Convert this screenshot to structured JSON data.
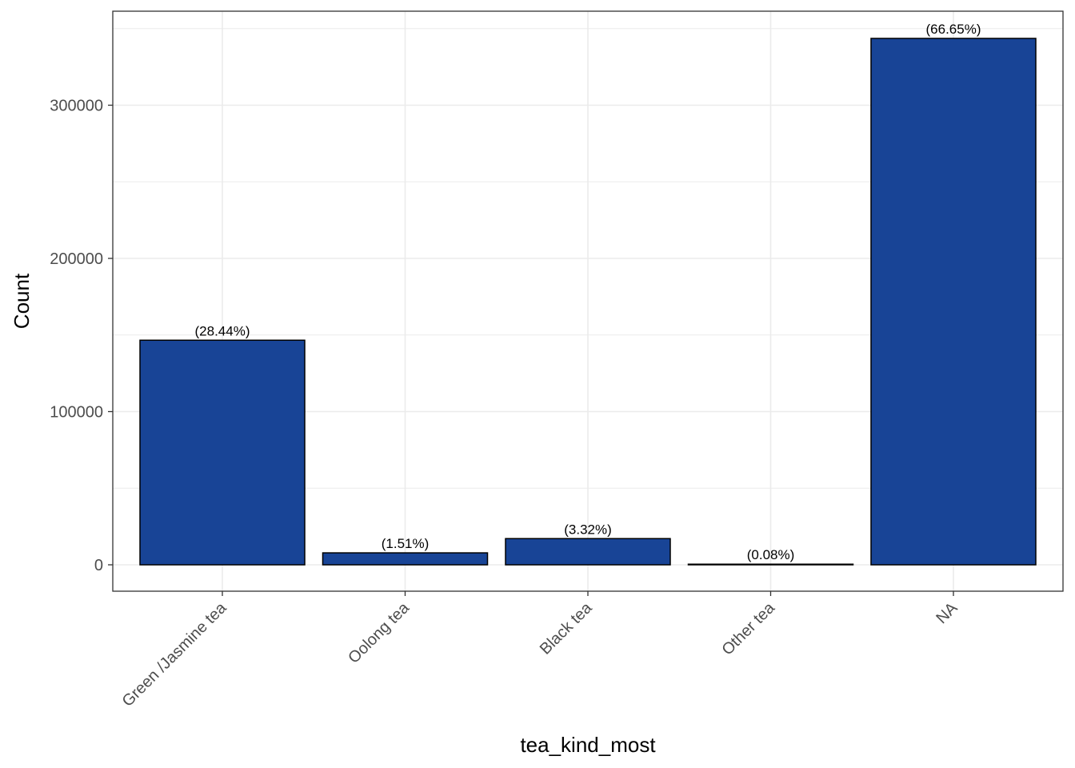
{
  "chart_data": {
    "type": "bar",
    "title": "",
    "xlabel": "tea_kind_most",
    "ylabel": "Count",
    "categories": [
      "Green /Jasmine tea",
      "Oolong tea",
      "Black tea",
      "Other tea",
      "NA"
    ],
    "values": [
      146600,
      7800,
      17100,
      400,
      343600
    ],
    "labels": [
      "(28.44%)",
      "(1.51%)",
      "(3.32%)",
      "(0.08%)",
      "(66.65%)"
    ],
    "ylim": [
      -17000,
      360000
    ],
    "yticks": [
      0,
      100000,
      200000,
      300000
    ],
    "ytick_labels": [
      "0",
      "100000",
      "200000",
      "300000"
    ],
    "grid": true,
    "colors": {
      "bar_fill": "#184496",
      "bar_stroke": "#000000",
      "grid": "#ebebeb",
      "panel_border": "#333333"
    }
  }
}
